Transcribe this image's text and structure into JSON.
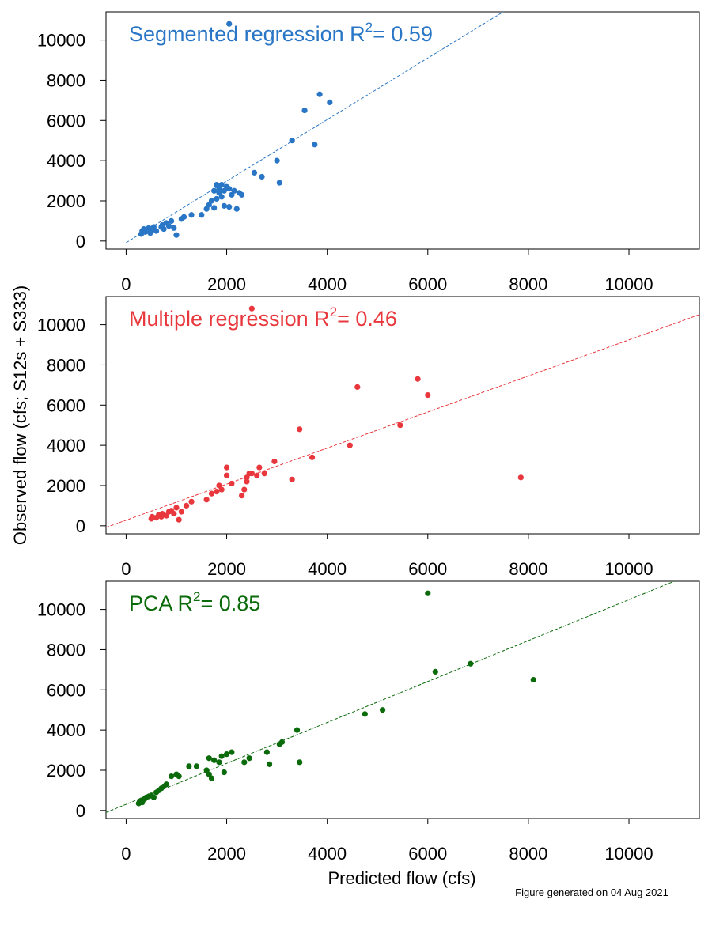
{
  "figure": {
    "ylabel": "Observed flow (cfs; S12s + S333)",
    "xlabel": "Predicted flow (cfs)",
    "footnote": "Figure generated on 04 Aug 2021"
  },
  "chart_data": [
    {
      "type": "scatter",
      "title_main": "Segmented regression R",
      "title_sup": "2",
      "title_tail": "= 0.59",
      "color": "#2a76c6",
      "xlim": [
        -400,
        11400
      ],
      "ylim": [
        -400,
        11400
      ],
      "xticks": [
        0,
        2000,
        4000,
        6000,
        8000,
        10000
      ],
      "yticks": [
        0,
        2000,
        4000,
        6000,
        8000,
        10000
      ],
      "grid": false,
      "fit_line": {
        "x": [
          0,
          7500
        ],
        "y": [
          -80,
          11400
        ]
      },
      "points": [
        [
          300,
          350
        ],
        [
          320,
          500
        ],
        [
          350,
          600
        ],
        [
          380,
          450
        ],
        [
          420,
          550
        ],
        [
          450,
          650
        ],
        [
          480,
          400
        ],
        [
          500,
          520
        ],
        [
          550,
          700
        ],
        [
          600,
          500
        ],
        [
          700,
          700
        ],
        [
          720,
          800
        ],
        [
          750,
          600
        ],
        [
          800,
          900
        ],
        [
          850,
          750
        ],
        [
          900,
          1000
        ],
        [
          950,
          650
        ],
        [
          1000,
          300
        ],
        [
          1100,
          1100
        ],
        [
          1150,
          1200
        ],
        [
          1300,
          1300
        ],
        [
          1500,
          1300
        ],
        [
          1600,
          1600
        ],
        [
          1650,
          1800
        ],
        [
          1700,
          2000
        ],
        [
          1750,
          1650
        ],
        [
          1750,
          2500
        ],
        [
          1800,
          2100
        ],
        [
          1800,
          2800
        ],
        [
          1850,
          2400
        ],
        [
          1850,
          2600
        ],
        [
          1900,
          2200
        ],
        [
          1900,
          2800
        ],
        [
          1950,
          1750
        ],
        [
          1950,
          2500
        ],
        [
          2000,
          2700
        ],
        [
          2050,
          1700
        ],
        [
          2050,
          2600
        ],
        [
          2100,
          2300
        ],
        [
          2150,
          2500
        ],
        [
          2200,
          1600
        ],
        [
          2250,
          2400
        ],
        [
          2300,
          2300
        ],
        [
          2550,
          3400
        ],
        [
          2700,
          3200
        ],
        [
          3000,
          4000
        ],
        [
          3050,
          2900
        ],
        [
          3300,
          5000
        ],
        [
          3550,
          6500
        ],
        [
          3750,
          4800
        ],
        [
          3850,
          7300
        ],
        [
          4050,
          6900
        ],
        [
          2050,
          10800
        ]
      ]
    },
    {
      "type": "scatter",
      "title_main": "Multiple regression R",
      "title_sup": "2",
      "title_tail": "= 0.46",
      "color": "#e8383d",
      "xlim": [
        -400,
        11400
      ],
      "ylim": [
        -400,
        11400
      ],
      "xticks": [
        0,
        2000,
        4000,
        6000,
        8000,
        10000
      ],
      "yticks": [
        0,
        2000,
        4000,
        6000,
        8000,
        10000
      ],
      "grid": false,
      "fit_line": {
        "x": [
          -400,
          11400
        ],
        "y": [
          -80,
          10500
        ]
      },
      "points": [
        [
          500,
          350
        ],
        [
          520,
          450
        ],
        [
          600,
          400
        ],
        [
          650,
          550
        ],
        [
          700,
          450
        ],
        [
          720,
          600
        ],
        [
          800,
          500
        ],
        [
          850,
          700
        ],
        [
          900,
          750
        ],
        [
          950,
          600
        ],
        [
          1000,
          900
        ],
        [
          1050,
          300
        ],
        [
          1100,
          700
        ],
        [
          1200,
          1000
        ],
        [
          1300,
          1200
        ],
        [
          1600,
          1300
        ],
        [
          1700,
          1600
        ],
        [
          1800,
          1700
        ],
        [
          1850,
          2000
        ],
        [
          1900,
          1800
        ],
        [
          2000,
          2500
        ],
        [
          2000,
          2900
        ],
        [
          2100,
          2100
        ],
        [
          2300,
          1500
        ],
        [
          2350,
          1800
        ],
        [
          2400,
          2400
        ],
        [
          2400,
          2200
        ],
        [
          2450,
          2600
        ],
        [
          2500,
          2600
        ],
        [
          2600,
          2500
        ],
        [
          2650,
          2900
        ],
        [
          2750,
          2600
        ],
        [
          2950,
          3200
        ],
        [
          3300,
          2300
        ],
        [
          3450,
          4800
        ],
        [
          3700,
          3400
        ],
        [
          4450,
          4000
        ],
        [
          4600,
          6900
        ],
        [
          5450,
          5000
        ],
        [
          5800,
          7300
        ],
        [
          6000,
          6500
        ],
        [
          7850,
          2400
        ],
        [
          2500,
          10800
        ]
      ]
    },
    {
      "type": "scatter",
      "title_main": "PCA R",
      "title_sup": "2",
      "title_tail": "= 0.85",
      "color": "#0b6b0b",
      "xlim": [
        -400,
        11400
      ],
      "ylim": [
        -400,
        11400
      ],
      "xticks": [
        0,
        2000,
        4000,
        6000,
        8000,
        10000
      ],
      "yticks": [
        0,
        2000,
        4000,
        6000,
        8000,
        10000
      ],
      "grid": false,
      "fit_line": {
        "x": [
          -400,
          10900
        ],
        "y": [
          -100,
          11400
        ]
      },
      "points": [
        [
          250,
          350
        ],
        [
          270,
          450
        ],
        [
          300,
          500
        ],
        [
          320,
          400
        ],
        [
          350,
          550
        ],
        [
          380,
          600
        ],
        [
          400,
          650
        ],
        [
          450,
          700
        ],
        [
          500,
          750
        ],
        [
          550,
          650
        ],
        [
          600,
          900
        ],
        [
          650,
          1000
        ],
        [
          700,
          1100
        ],
        [
          750,
          1200
        ],
        [
          800,
          1300
        ],
        [
          900,
          1700
        ],
        [
          1000,
          1800
        ],
        [
          1050,
          1700
        ],
        [
          1250,
          2200
        ],
        [
          1400,
          2200
        ],
        [
          1600,
          2000
        ],
        [
          1650,
          2600
        ],
        [
          1650,
          1800
        ],
        [
          1700,
          1600
        ],
        [
          1750,
          2500
        ],
        [
          1850,
          2400
        ],
        [
          1900,
          2700
        ],
        [
          1950,
          1900
        ],
        [
          2000,
          2800
        ],
        [
          2100,
          2900
        ],
        [
          2350,
          2400
        ],
        [
          2450,
          2600
        ],
        [
          2800,
          2900
        ],
        [
          2850,
          2300
        ],
        [
          3050,
          3300
        ],
        [
          3100,
          3400
        ],
        [
          3400,
          4000
        ],
        [
          3450,
          2400
        ],
        [
          4750,
          4800
        ],
        [
          5100,
          5000
        ],
        [
          6150,
          6900
        ],
        [
          6850,
          7300
        ],
        [
          8100,
          6500
        ],
        [
          6000,
          10800
        ]
      ]
    }
  ]
}
